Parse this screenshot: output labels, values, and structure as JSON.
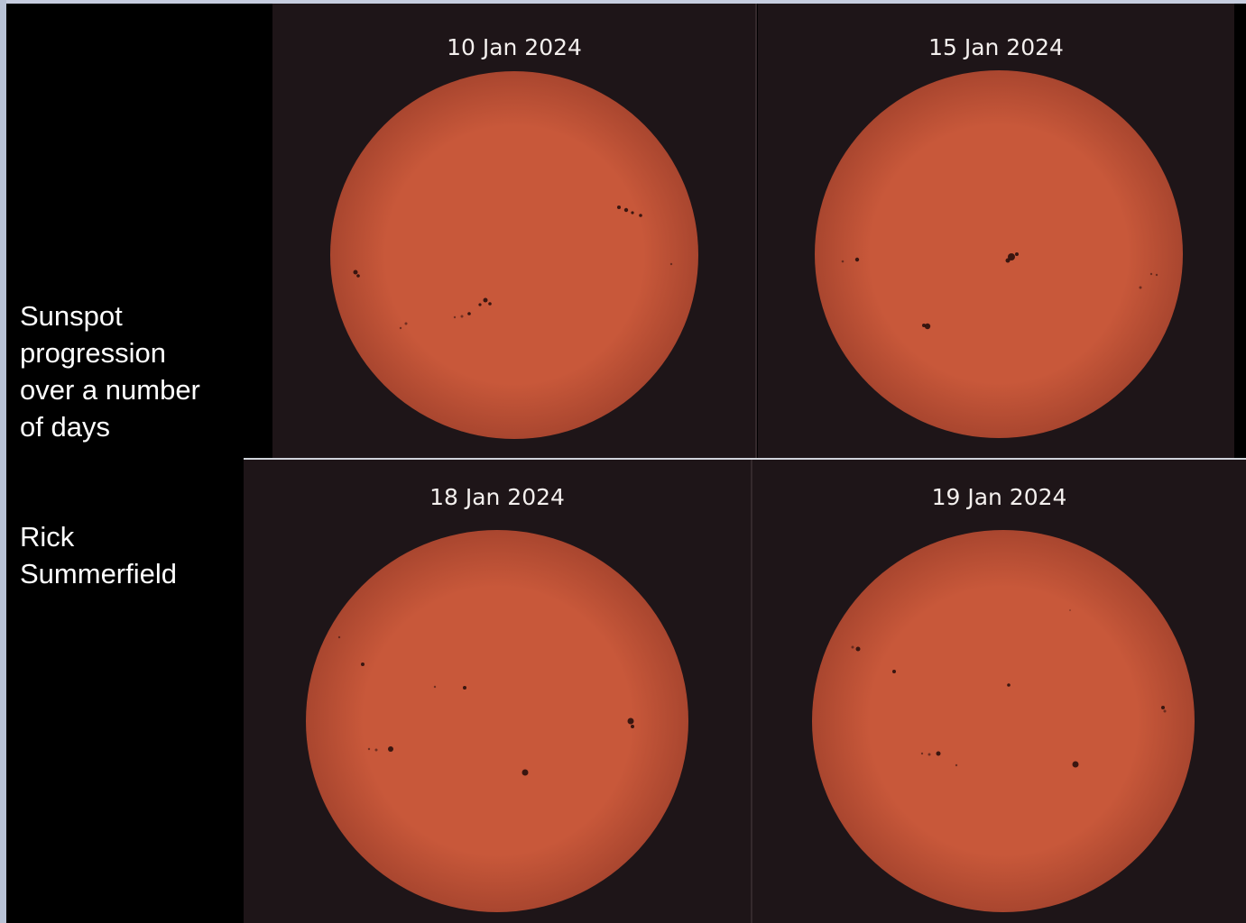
{
  "caption": {
    "title": "Sunspot\nprogression\nover a number\nof days",
    "credit": "Rick\nSummerfield"
  },
  "panels": [
    {
      "date": "10 Jan 2024"
    },
    {
      "date": "15 Jan 2024"
    },
    {
      "date": "18 Jan 2024"
    },
    {
      "date": "19 Jan 2024"
    }
  ],
  "colors": {
    "sun_center": "#c8583a",
    "sun_edge": "#a9462f",
    "panel_background": "#1e1518",
    "sunspot": "#2a0f0c"
  }
}
